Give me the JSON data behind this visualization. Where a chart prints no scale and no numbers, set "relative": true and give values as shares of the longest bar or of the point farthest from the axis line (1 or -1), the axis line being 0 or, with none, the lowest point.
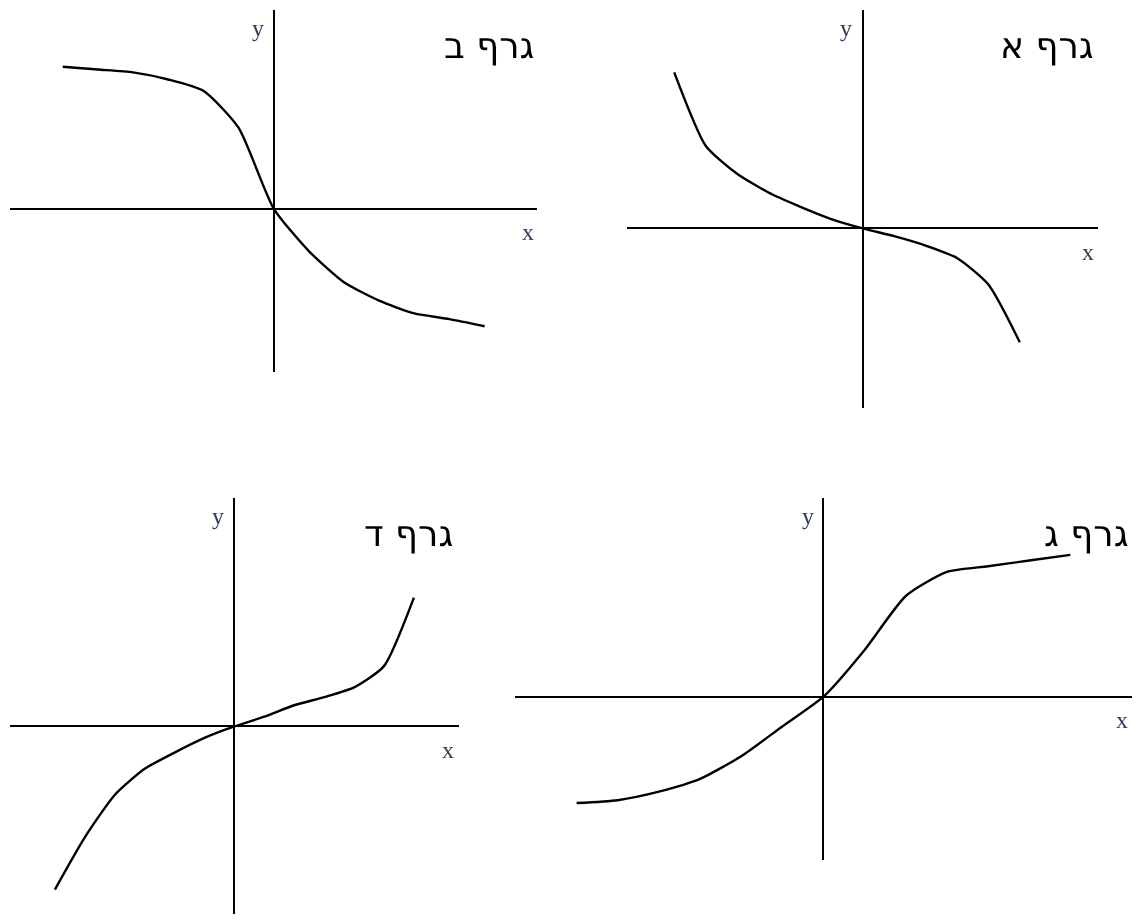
{
  "chart_data": [
    {
      "type": "line",
      "relative": true,
      "title": "גרף ב",
      "xlabel": "x",
      "ylabel": "y",
      "marker": "none",
      "line_style": "solid",
      "categories": [
        null,
        null,
        null,
        null,
        null,
        null,
        null,
        null,
        null,
        null,
        null,
        null,
        null
      ],
      "series": [
        {
          "color": "#000000",
          "values": [
            1,
            0.98,
            0.96,
            0.91,
            0.83,
            0.57,
            0,
            -0.3,
            -0.52,
            -0.65,
            -0.74,
            -0.78,
            -0.83
          ]
        }
      ]
    },
    {
      "type": "line",
      "relative": true,
      "title": "גרף א",
      "xlabel": "x",
      "ylabel": "y",
      "marker": "none",
      "line_style": "solid",
      "categories": [
        null,
        null,
        null,
        null,
        null,
        null,
        null,
        null,
        null,
        null,
        null,
        null,
        null
      ],
      "series": [
        {
          "color": "#000000",
          "values": [
            1,
            0.53,
            0.35,
            0.23,
            0.14,
            0.06,
            0,
            -0.05,
            -0.11,
            -0.19,
            -0.36,
            -0.73,
            null
          ]
        }
      ]
    },
    {
      "type": "line",
      "relative": true,
      "title": "גרף ד",
      "xlabel": "x",
      "ylabel": "y",
      "marker": "none",
      "line_style": "solid",
      "categories": [
        null,
        null,
        null,
        null,
        null,
        null,
        null,
        null,
        null,
        null,
        null,
        null,
        null
      ],
      "series": [
        {
          "color": "#000000",
          "values": [
            -1,
            -0.68,
            -0.42,
            -0.26,
            -0.16,
            -0.07,
            0,
            0.06,
            0.13,
            0.18,
            0.24,
            0.37,
            0.79
          ]
        }
      ]
    },
    {
      "type": "line",
      "relative": true,
      "title": "גרף ג",
      "xlabel": "x",
      "ylabel": "y",
      "marker": "none",
      "line_style": "solid",
      "categories": [
        null,
        null,
        null,
        null,
        null,
        null,
        null,
        null,
        null,
        null,
        null,
        null,
        null
      ],
      "series": [
        {
          "color": "#000000",
          "values": [
            -0.75,
            -0.73,
            -0.67,
            -0.58,
            -0.42,
            -0.21,
            0,
            0.33,
            0.71,
            0.88,
            0.92,
            0.96,
            1
          ]
        }
      ]
    }
  ]
}
